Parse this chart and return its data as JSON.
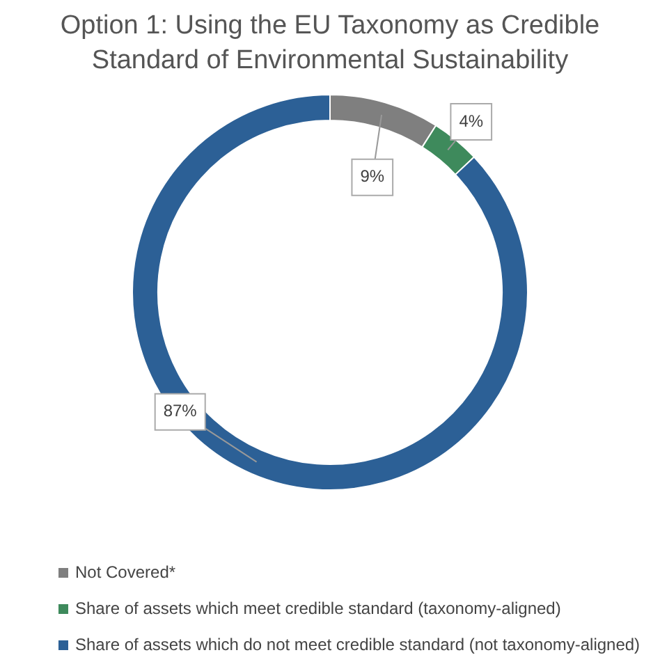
{
  "chart_data": {
    "type": "donut",
    "title": "Option 1: Using the EU Taxonomy as Credible Standard of Environmental Sustainability",
    "categories": [
      "Not Covered*",
      "Share of assets which meet credible standard (taxonomy-aligned)",
      "Share of assets which do not meet credible standard (not taxonomy-aligned)"
    ],
    "values": [
      9,
      4,
      87
    ],
    "colors": [
      "#7f7f7f",
      "#3e8a5c",
      "#2c6096"
    ],
    "value_labels": [
      "9%",
      "4%",
      "87%"
    ],
    "legend": "bottom"
  }
}
